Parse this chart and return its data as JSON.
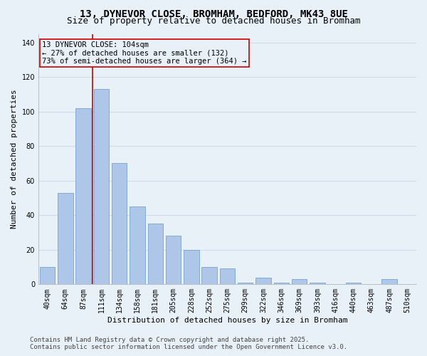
{
  "title_line1": "13, DYNEVOR CLOSE, BROMHAM, BEDFORD, MK43 8UE",
  "title_line2": "Size of property relative to detached houses in Bromham",
  "xlabel": "Distribution of detached houses by size in Bromham",
  "ylabel": "Number of detached properties",
  "categories": [
    "40sqm",
    "64sqm",
    "87sqm",
    "111sqm",
    "134sqm",
    "158sqm",
    "181sqm",
    "205sqm",
    "228sqm",
    "252sqm",
    "275sqm",
    "299sqm",
    "322sqm",
    "346sqm",
    "369sqm",
    "393sqm",
    "416sqm",
    "440sqm",
    "463sqm",
    "487sqm",
    "510sqm"
  ],
  "values": [
    10,
    53,
    102,
    113,
    70,
    45,
    35,
    28,
    20,
    10,
    9,
    1,
    4,
    1,
    3,
    1,
    0,
    1,
    0,
    3,
    0
  ],
  "bar_color": "#aec6e8",
  "bar_edge_color": "#6699cc",
  "grid_color": "#d0d8e8",
  "bg_color": "#e8f0f8",
  "vline_x": 2.5,
  "vline_color": "#cc0000",
  "annotation_text": "13 DYNEVOR CLOSE: 104sqm\n← 27% of detached houses are smaller (132)\n73% of semi-detached houses are larger (364) →",
  "annotation_box_color": "#cc0000",
  "ylim": [
    0,
    145
  ],
  "yticks": [
    0,
    20,
    40,
    60,
    80,
    100,
    120,
    140
  ],
  "footer_line1": "Contains HM Land Registry data © Crown copyright and database right 2025.",
  "footer_line2": "Contains public sector information licensed under the Open Government Licence v3.0.",
  "title_fontsize": 10,
  "subtitle_fontsize": 9,
  "axis_label_fontsize": 8,
  "tick_fontsize": 7,
  "annotation_fontsize": 7.5,
  "footer_fontsize": 6.5
}
